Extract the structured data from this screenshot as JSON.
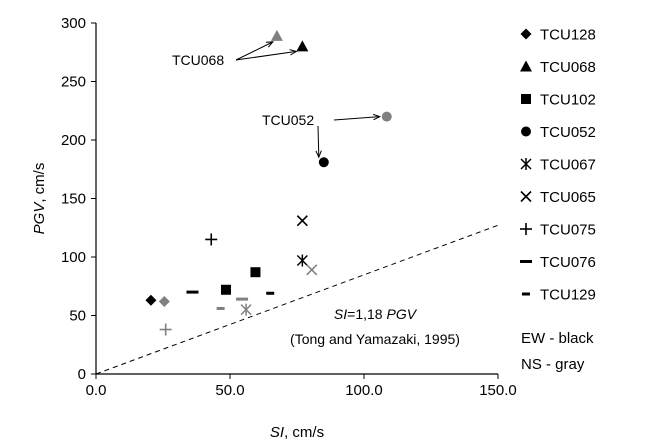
{
  "chart_data": {
    "type": "scatter",
    "xlabel": {
      "italic": "SI",
      "rest": ", cm/s"
    },
    "ylabel": {
      "italic": "PGV",
      "rest": ", cm/s"
    },
    "xlim": [
      0,
      150
    ],
    "ylim": [
      0,
      300
    ],
    "xticks": [
      0,
      50,
      100,
      150
    ],
    "xtick_labels": [
      "0.0",
      "50.0",
      "100.0",
      "150.0"
    ],
    "yticks": [
      0,
      50,
      100,
      150,
      200,
      250,
      300
    ],
    "ytick_labels": [
      "0",
      "50",
      "100",
      "150",
      "200",
      "250",
      "300"
    ],
    "grid": false,
    "legend_position": "right",
    "colors": {
      "EW": "#000000",
      "NS": "#808080"
    },
    "series": [
      {
        "name": "TCU128",
        "marker": "diamond",
        "points": [
          {
            "x": 20.5,
            "y": 63,
            "component": "EW"
          },
          {
            "x": 25.5,
            "y": 62,
            "component": "NS"
          }
        ]
      },
      {
        "name": "TCU068",
        "marker": "triangle",
        "points": [
          {
            "x": 77,
            "y": 280,
            "component": "EW"
          },
          {
            "x": 67.5,
            "y": 289,
            "component": "NS"
          }
        ]
      },
      {
        "name": "TCU102",
        "marker": "square",
        "points": [
          {
            "x": 59.5,
            "y": 87,
            "component": "EW"
          },
          {
            "x": 48.5,
            "y": 72,
            "component": "EW"
          }
        ]
      },
      {
        "name": "TCU052",
        "marker": "circle",
        "points": [
          {
            "x": 85,
            "y": 181,
            "component": "EW"
          },
          {
            "x": 108.5,
            "y": 220,
            "component": "NS"
          }
        ]
      },
      {
        "name": "TCU067",
        "marker": "star",
        "points": [
          {
            "x": 77,
            "y": 97,
            "component": "EW"
          },
          {
            "x": 56,
            "y": 55,
            "component": "NS"
          }
        ]
      },
      {
        "name": "TCU065",
        "marker": "x",
        "points": [
          {
            "x": 77,
            "y": 131,
            "component": "EW"
          },
          {
            "x": 80.5,
            "y": 89,
            "component": "NS"
          }
        ]
      },
      {
        "name": "TCU075",
        "marker": "plus",
        "points": [
          {
            "x": 43,
            "y": 115,
            "component": "EW"
          },
          {
            "x": 26,
            "y": 38,
            "component": "NS"
          }
        ]
      },
      {
        "name": "TCU076",
        "marker": "dash",
        "points": [
          {
            "x": 36,
            "y": 70,
            "component": "EW"
          },
          {
            "x": 54.5,
            "y": 64,
            "component": "NS"
          }
        ]
      },
      {
        "name": "TCU129",
        "marker": "shortdash",
        "points": [
          {
            "x": 65,
            "y": 69,
            "component": "EW"
          },
          {
            "x": 46.5,
            "y": 56,
            "component": "NS"
          }
        ]
      }
    ],
    "reference_line": {
      "label_italic": "SI",
      "label_rest": "=1,18 ",
      "label_italic2": "PGV",
      "citation": "(Tong and Yamazaki, 1995)",
      "slope": 0.8475
    },
    "annotations": [
      {
        "text": "TCU068"
      },
      {
        "text": "TCU052"
      }
    ],
    "color_key": [
      "EW - black",
      "NS - gray"
    ]
  }
}
